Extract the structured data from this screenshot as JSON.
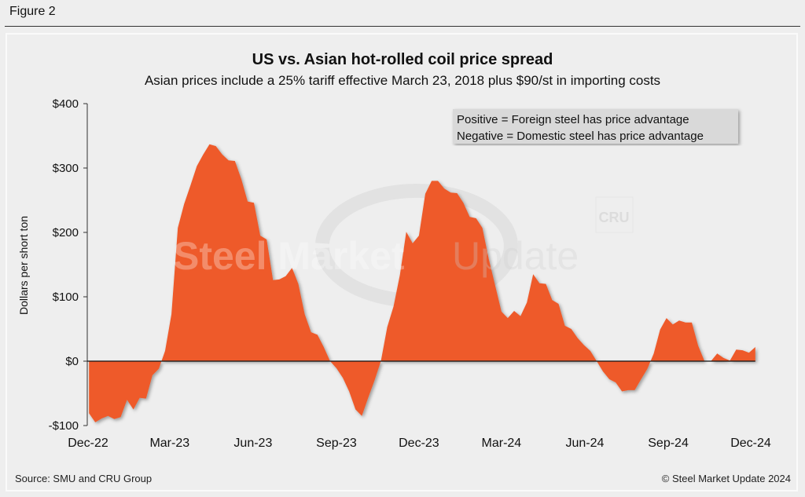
{
  "figure_label": "Figure 2",
  "source": "Source: SMU and CRU Group",
  "copyright": "© Steel Market Update 2024",
  "watermark": {
    "text_bold": "Steel Market",
    "text_light": "Update",
    "logo": "CRU"
  },
  "colors": {
    "area": "#ee5a2a",
    "background": "#eeeeee",
    "annotation_box": "#d9d9d9"
  },
  "chart_data": {
    "type": "area",
    "title": "US vs. Asian hot-rolled coil price spread",
    "subtitle": "Asian prices include a 25% tariff effective March 23, 2018 plus $90/st in importing costs",
    "xlabel": "",
    "ylabel": "Dollars per short ton",
    "ylim": [
      -100,
      400
    ],
    "yticks": [
      -100,
      0,
      100,
      200,
      300,
      400
    ],
    "ytick_labels": [
      "-$100",
      "$0",
      "$100",
      "$200",
      "$300",
      "$400"
    ],
    "xticks": [
      "2022-12-01",
      "2023-03-01",
      "2023-06-01",
      "2023-09-01",
      "2023-12-01",
      "2024-03-01",
      "2024-06-01",
      "2024-09-01",
      "2024-12-01"
    ],
    "xtick_labels": [
      "Dec-22",
      "Mar-23",
      "Jun-23",
      "Sep-23",
      "Dec-23",
      "Mar-24",
      "Jun-24",
      "Sep-24",
      "Dec-24"
    ],
    "grid": false,
    "annotation": [
      "Positive = Foreign steel has price advantage",
      "Negative = Domestic steel has price advantage"
    ],
    "x": [
      "2022-12-02",
      "2022-12-09",
      "2022-12-16",
      "2022-12-23",
      "2022-12-30",
      "2023-01-06",
      "2023-01-13",
      "2023-01-20",
      "2023-01-27",
      "2023-02-03",
      "2023-02-10",
      "2023-02-17",
      "2023-02-24",
      "2023-03-03",
      "2023-03-10",
      "2023-03-17",
      "2023-03-24",
      "2023-03-31",
      "2023-04-07",
      "2023-04-14",
      "2023-04-21",
      "2023-04-28",
      "2023-05-05",
      "2023-05-12",
      "2023-05-19",
      "2023-05-26",
      "2023-06-02",
      "2023-06-09",
      "2023-06-16",
      "2023-06-23",
      "2023-06-30",
      "2023-07-07",
      "2023-07-14",
      "2023-07-21",
      "2023-07-28",
      "2023-08-04",
      "2023-08-11",
      "2023-08-18",
      "2023-08-25",
      "2023-09-01",
      "2023-09-08",
      "2023-09-15",
      "2023-09-22",
      "2023-09-29",
      "2023-10-06",
      "2023-10-13",
      "2023-10-20",
      "2023-10-27",
      "2023-11-03",
      "2023-11-10",
      "2023-11-17",
      "2023-11-24",
      "2023-12-01",
      "2023-12-08",
      "2023-12-15",
      "2023-12-22",
      "2023-12-29",
      "2024-01-05",
      "2024-01-12",
      "2024-01-19",
      "2024-01-26",
      "2024-02-02",
      "2024-02-09",
      "2024-02-16",
      "2024-02-23",
      "2024-03-01",
      "2024-03-08",
      "2024-03-15",
      "2024-03-22",
      "2024-03-29",
      "2024-04-05",
      "2024-04-12",
      "2024-04-19",
      "2024-04-26",
      "2024-05-03",
      "2024-05-10",
      "2024-05-17",
      "2024-05-24",
      "2024-05-31",
      "2024-06-07",
      "2024-06-14",
      "2024-06-21",
      "2024-06-28",
      "2024-07-05",
      "2024-07-12",
      "2024-07-19",
      "2024-07-26",
      "2024-08-02",
      "2024-08-09",
      "2024-08-16",
      "2024-08-23",
      "2024-08-30",
      "2024-09-06",
      "2024-09-13",
      "2024-09-20",
      "2024-09-27",
      "2024-10-04",
      "2024-10-11",
      "2024-10-18",
      "2024-10-25",
      "2024-11-01",
      "2024-11-08",
      "2024-11-15",
      "2024-11-22",
      "2024-11-29",
      "2024-12-06"
    ],
    "values": [
      -81,
      -95,
      -89,
      -85,
      -90,
      -87,
      -60,
      -75,
      -57,
      -58,
      -22,
      -12,
      16,
      73,
      207,
      244,
      273,
      303,
      321,
      337,
      334,
      321,
      312,
      311,
      283,
      248,
      246,
      195,
      189,
      126,
      127,
      132,
      145,
      120,
      73,
      45,
      41,
      22,
      0,
      -11,
      -26,
      -47,
      -75,
      -85,
      -57,
      -30,
      0,
      53,
      85,
      134,
      201,
      183,
      195,
      260,
      280,
      280,
      268,
      262,
      261,
      246,
      224,
      222,
      207,
      159,
      118,
      77,
      67,
      78,
      70,
      91,
      135,
      121,
      120,
      95,
      89,
      55,
      50,
      36,
      25,
      16,
      0,
      -16,
      -28,
      -33,
      -47,
      -45,
      -45,
      -28,
      -12,
      12,
      49,
      67,
      57,
      63,
      60,
      60,
      24,
      0,
      0,
      12,
      5,
      1,
      18,
      17,
      13,
      22
    ]
  }
}
